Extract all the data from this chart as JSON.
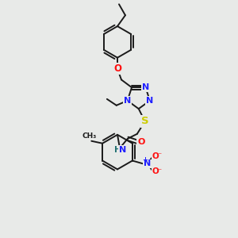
{
  "background_color": "#e8eae8",
  "bond_color": "#1a1a1a",
  "atom_colors": {
    "N": "#2020ff",
    "O": "#ff1010",
    "S": "#cccc00",
    "H": "#207070",
    "C": "#1a1a1a"
  },
  "lw": 1.4,
  "fs": 8.0
}
